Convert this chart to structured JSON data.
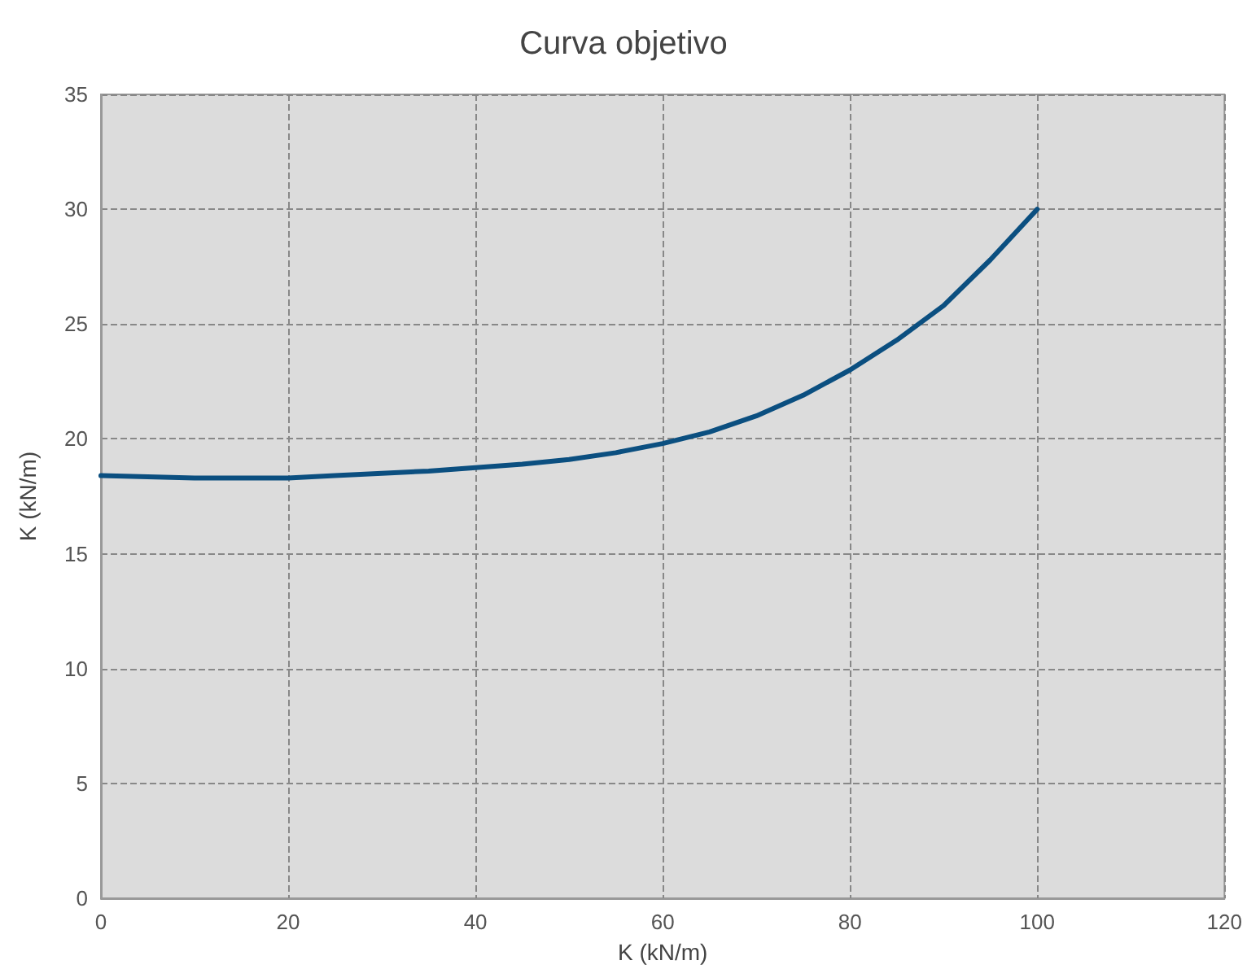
{
  "chart_data": {
    "type": "line",
    "title": "Curva objetivo",
    "xlabel": "K (kN/m)",
    "ylabel": "K (kN/m)",
    "x": [
      0,
      5,
      10,
      15,
      20,
      25,
      30,
      35,
      40,
      45,
      50,
      55,
      60,
      65,
      70,
      75,
      80,
      85,
      90,
      95,
      100
    ],
    "series": [
      {
        "color": "#0b4f80",
        "values": [
          18.4,
          18.35,
          18.3,
          18.3,
          18.3,
          18.4,
          18.5,
          18.6,
          18.75,
          18.9,
          19.1,
          19.4,
          19.8,
          20.3,
          21.0,
          21.9,
          23.0,
          24.3,
          25.8,
          27.8,
          30.0
        ]
      }
    ],
    "xlim": [
      0,
      120
    ],
    "xticks": [
      0,
      20,
      40,
      60,
      80,
      100,
      120
    ],
    "ylim": [
      0,
      35
    ],
    "yticks": [
      0,
      5,
      10,
      15,
      20,
      25,
      30,
      35
    ],
    "grid": true,
    "marker": "none",
    "line_style": "solid"
  }
}
